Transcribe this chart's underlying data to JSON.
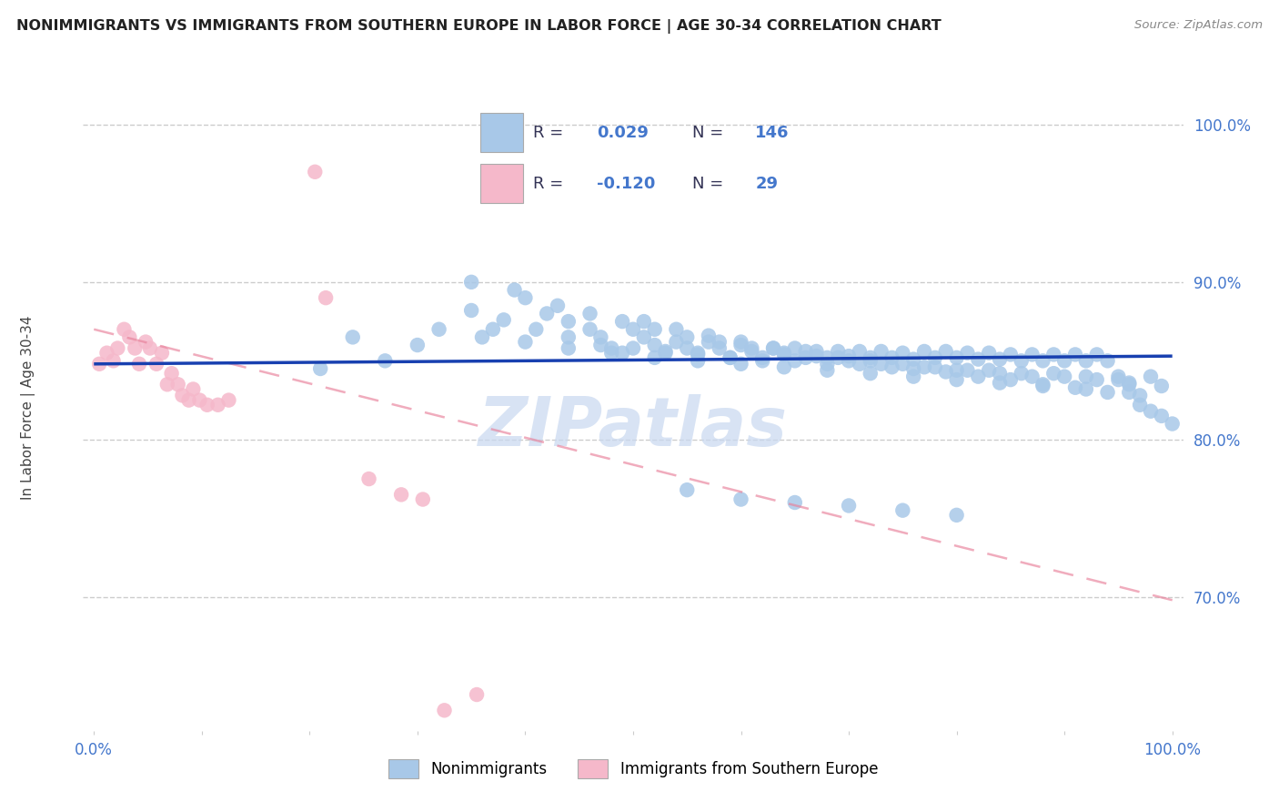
{
  "title": "NONIMMIGRANTS VS IMMIGRANTS FROM SOUTHERN EUROPE IN LABOR FORCE | AGE 30-34 CORRELATION CHART",
  "source": "Source: ZipAtlas.com",
  "ylabel": "In Labor Force | Age 30-34",
  "ytick_labels": [
    "70.0%",
    "80.0%",
    "90.0%",
    "100.0%"
  ],
  "ytick_values": [
    0.7,
    0.8,
    0.9,
    1.0
  ],
  "xlim": [
    -0.01,
    1.01
  ],
  "ylim": [
    0.615,
    1.025
  ],
  "blue_color": "#a8c8e8",
  "pink_color": "#f5b8ca",
  "blue_line_color": "#1840b0",
  "pink_line_color": "#e8809a",
  "legend_text_color": "#4477cc",
  "legend_label_color": "#333355",
  "watermark": "ZIPatlas",
  "watermark_color": "#c8d8f0",
  "grid_color": "#cccccc",
  "title_color": "#222222",
  "source_color": "#888888",
  "ylabel_color": "#444444",
  "tick_color": "#4477cc",
  "blue_scatter_x": [
    0.21,
    0.24,
    0.27,
    0.3,
    0.35,
    0.37,
    0.39,
    0.42,
    0.44,
    0.46,
    0.47,
    0.48,
    0.49,
    0.5,
    0.51,
    0.52,
    0.53,
    0.54,
    0.55,
    0.56,
    0.57,
    0.58,
    0.59,
    0.6,
    0.61,
    0.62,
    0.63,
    0.64,
    0.65,
    0.66,
    0.67,
    0.68,
    0.69,
    0.7,
    0.71,
    0.72,
    0.73,
    0.74,
    0.75,
    0.76,
    0.77,
    0.78,
    0.79,
    0.8,
    0.81,
    0.82,
    0.83,
    0.84,
    0.85,
    0.86,
    0.87,
    0.88,
    0.89,
    0.9,
    0.91,
    0.92,
    0.93,
    0.94,
    0.95,
    0.96,
    0.97,
    0.98,
    0.99,
    1.0,
    0.35,
    0.38,
    0.41,
    0.44,
    0.47,
    0.5,
    0.53,
    0.56,
    0.59,
    0.62,
    0.65,
    0.68,
    0.71,
    0.74,
    0.77,
    0.8,
    0.83,
    0.86,
    0.89,
    0.92,
    0.95,
    0.98,
    0.51,
    0.54,
    0.57,
    0.6,
    0.63,
    0.66,
    0.69,
    0.72,
    0.75,
    0.78,
    0.81,
    0.84,
    0.87,
    0.9,
    0.93,
    0.96,
    0.99,
    0.4,
    0.43,
    0.46,
    0.49,
    0.52,
    0.55,
    0.58,
    0.61,
    0.64,
    0.67,
    0.7,
    0.73,
    0.76,
    0.79,
    0.82,
    0.85,
    0.88,
    0.91,
    0.94,
    0.97,
    0.32,
    0.36,
    0.4,
    0.44,
    0.48,
    0.52,
    0.56,
    0.6,
    0.64,
    0.68,
    0.72,
    0.76,
    0.8,
    0.84,
    0.88,
    0.92,
    0.96,
    0.55,
    0.6,
    0.65,
    0.7,
    0.75,
    0.8
  ],
  "blue_scatter_y": [
    0.845,
    0.865,
    0.85,
    0.86,
    0.9,
    0.87,
    0.895,
    0.88,
    0.875,
    0.87,
    0.865,
    0.858,
    0.855,
    0.87,
    0.865,
    0.86,
    0.855,
    0.862,
    0.858,
    0.855,
    0.862,
    0.858,
    0.852,
    0.86,
    0.856,
    0.852,
    0.858,
    0.854,
    0.858,
    0.852,
    0.856,
    0.852,
    0.856,
    0.853,
    0.856,
    0.852,
    0.856,
    0.852,
    0.855,
    0.851,
    0.856,
    0.852,
    0.856,
    0.852,
    0.855,
    0.851,
    0.855,
    0.851,
    0.854,
    0.85,
    0.854,
    0.85,
    0.854,
    0.85,
    0.854,
    0.85,
    0.854,
    0.85,
    0.838,
    0.835,
    0.822,
    0.818,
    0.815,
    0.81,
    0.882,
    0.876,
    0.87,
    0.865,
    0.86,
    0.858,
    0.856,
    0.854,
    0.852,
    0.85,
    0.85,
    0.848,
    0.848,
    0.846,
    0.846,
    0.844,
    0.844,
    0.842,
    0.842,
    0.84,
    0.84,
    0.84,
    0.875,
    0.87,
    0.866,
    0.862,
    0.858,
    0.856,
    0.852,
    0.85,
    0.848,
    0.846,
    0.844,
    0.842,
    0.84,
    0.84,
    0.838,
    0.836,
    0.834,
    0.89,
    0.885,
    0.88,
    0.875,
    0.87,
    0.865,
    0.862,
    0.858,
    0.855,
    0.853,
    0.85,
    0.848,
    0.845,
    0.843,
    0.84,
    0.838,
    0.835,
    0.833,
    0.83,
    0.828,
    0.87,
    0.865,
    0.862,
    0.858,
    0.855,
    0.852,
    0.85,
    0.848,
    0.846,
    0.844,
    0.842,
    0.84,
    0.838,
    0.836,
    0.834,
    0.832,
    0.83,
    0.768,
    0.762,
    0.76,
    0.758,
    0.755,
    0.752
  ],
  "pink_scatter_x": [
    0.005,
    0.012,
    0.018,
    0.022,
    0.028,
    0.033,
    0.038,
    0.042,
    0.048,
    0.052,
    0.058,
    0.063,
    0.068,
    0.072,
    0.078,
    0.082,
    0.088,
    0.092,
    0.098,
    0.105,
    0.115,
    0.125,
    0.205,
    0.215,
    0.255,
    0.285,
    0.305,
    0.325,
    0.355
  ],
  "pink_scatter_y": [
    0.848,
    0.855,
    0.85,
    0.858,
    0.87,
    0.865,
    0.858,
    0.848,
    0.862,
    0.858,
    0.848,
    0.855,
    0.835,
    0.842,
    0.835,
    0.828,
    0.825,
    0.832,
    0.825,
    0.822,
    0.822,
    0.825,
    0.97,
    0.89,
    0.775,
    0.765,
    0.762,
    0.628,
    0.638
  ],
  "blue_trend_x": [
    0.0,
    1.0
  ],
  "blue_trend_y": [
    0.848,
    0.853
  ],
  "pink_trend_x": [
    0.0,
    1.0
  ],
  "pink_trend_y": [
    0.87,
    0.698
  ]
}
